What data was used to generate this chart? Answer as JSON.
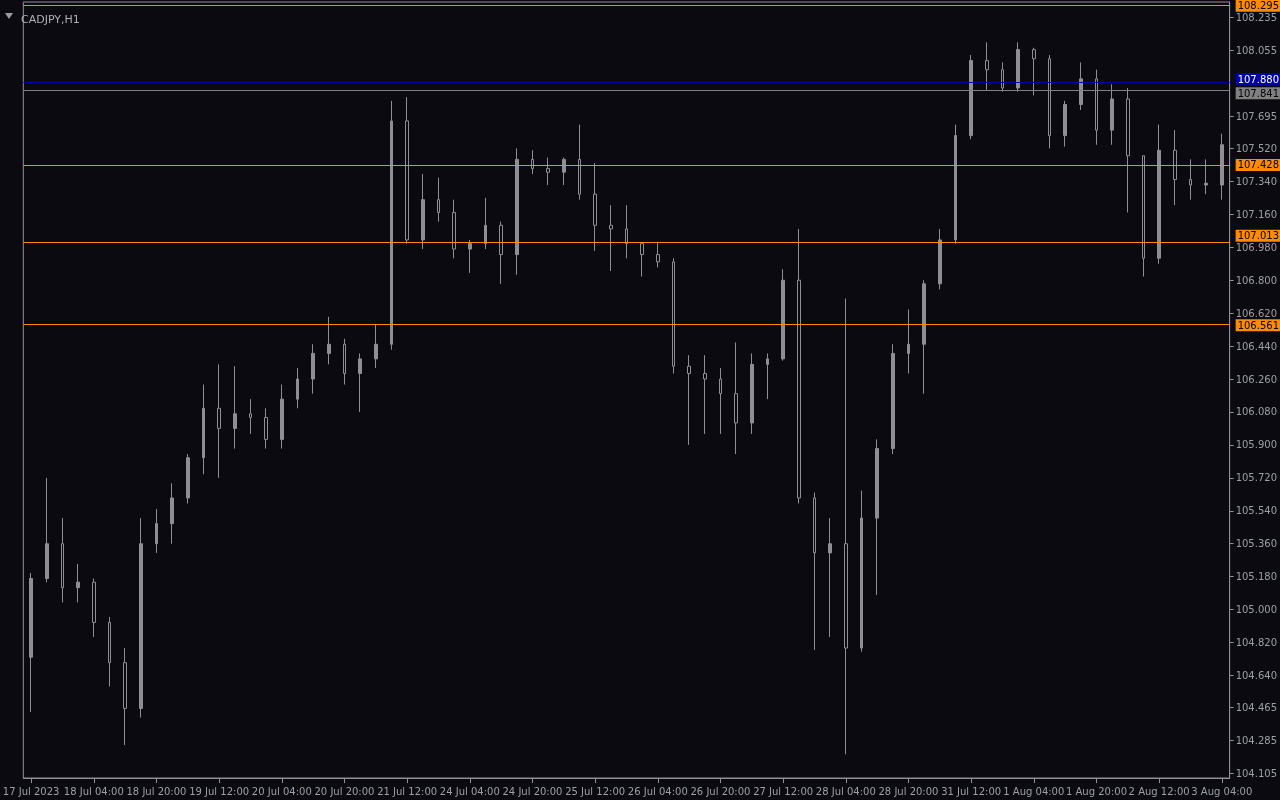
{
  "chart_data": {
    "type": "candlestick",
    "title": "CADJPY,H1",
    "categories": [
      "17 Jul 2023",
      null,
      null,
      null,
      "18 Jul 04:00",
      null,
      null,
      null,
      "18 Jul 20:00",
      null,
      null,
      null,
      "19 Jul 12:00",
      null,
      null,
      null,
      "20 Jul 04:00",
      null,
      null,
      null,
      "20 Jul 20:00",
      null,
      null,
      null,
      "21 Jul 12:00",
      null,
      null,
      null,
      "24 Jul 04:00",
      null,
      null,
      null,
      "24 Jul 20:00",
      null,
      null,
      null,
      "25 Jul 12:00",
      null,
      null,
      null,
      "26 Jul 04:00",
      null,
      null,
      null,
      "26 Jul 20:00",
      null,
      null,
      null,
      "27 Jul 12:00",
      null,
      null,
      null,
      "28 Jul 04:00",
      null,
      null,
      null,
      "28 Jul 20:00",
      null,
      null,
      null,
      "31 Jul 12:00",
      null,
      null,
      null,
      "1 Aug 04:00",
      null,
      null,
      null,
      "1 Aug 20:00",
      null,
      null,
      null,
      "2 Aug 12:00",
      null,
      null,
      null,
      "3 Aug 04:00"
    ],
    "series": [
      {
        "color": "#8e8e96",
        "ohlc": [
          [
            104.74,
            105.2,
            104.44,
            105.17
          ],
          [
            105.17,
            105.72,
            105.15,
            105.36
          ],
          [
            105.36,
            105.5,
            105.04,
            105.12
          ],
          [
            105.12,
            105.25,
            105.04,
            105.15
          ],
          [
            105.15,
            105.17,
            104.85,
            104.93
          ],
          [
            104.93,
            104.96,
            104.58,
            104.71
          ],
          [
            104.71,
            104.79,
            104.26,
            104.46
          ],
          [
            104.46,
            105.5,
            104.41,
            105.36
          ],
          [
            105.36,
            105.55,
            105.31,
            105.47
          ],
          [
            105.47,
            105.69,
            105.36,
            105.61
          ],
          [
            105.61,
            105.85,
            105.58,
            105.83
          ],
          [
            105.83,
            106.23,
            105.74,
            106.1
          ],
          [
            106.1,
            106.34,
            105.72,
            105.99
          ],
          [
            105.99,
            106.33,
            105.88,
            106.07
          ],
          [
            106.07,
            106.15,
            105.96,
            106.05
          ],
          [
            106.05,
            106.1,
            105.88,
            105.93
          ],
          [
            105.93,
            106.23,
            105.88,
            106.15
          ],
          [
            106.15,
            106.32,
            106.1,
            106.26
          ],
          [
            106.26,
            106.45,
            106.18,
            106.4
          ],
          [
            106.4,
            106.6,
            106.34,
            106.45
          ],
          [
            106.45,
            106.48,
            106.23,
            106.29
          ],
          [
            106.29,
            106.4,
            106.08,
            106.37
          ],
          [
            106.37,
            106.56,
            106.32,
            106.45
          ],
          [
            106.45,
            107.78,
            106.42,
            107.67
          ],
          [
            107.67,
            107.8,
            107.0,
            107.02
          ],
          [
            107.02,
            107.38,
            106.97,
            107.24
          ],
          [
            107.24,
            107.36,
            107.12,
            107.17
          ],
          [
            107.17,
            107.24,
            106.92,
            106.97
          ],
          [
            106.97,
            107.02,
            106.84,
            107.0
          ],
          [
            107.0,
            107.25,
            106.97,
            107.1
          ],
          [
            107.1,
            107.12,
            106.78,
            106.94
          ],
          [
            106.94,
            107.52,
            106.83,
            107.46
          ],
          [
            107.46,
            107.51,
            107.38,
            107.41
          ],
          [
            107.41,
            107.47,
            107.32,
            107.39
          ],
          [
            107.39,
            107.47,
            107.32,
            107.46
          ],
          [
            107.46,
            107.65,
            107.24,
            107.27
          ],
          [
            107.27,
            107.44,
            106.96,
            107.1
          ],
          [
            107.1,
            107.21,
            106.85,
            107.08
          ],
          [
            107.08,
            107.21,
            106.92,
            107.0
          ],
          [
            107.0,
            107.01,
            106.82,
            106.94
          ],
          [
            106.94,
            107.01,
            106.87,
            106.9
          ],
          [
            106.9,
            106.92,
            106.29,
            106.33
          ],
          [
            106.33,
            106.39,
            105.9,
            106.29
          ],
          [
            106.29,
            106.39,
            105.96,
            106.26
          ],
          [
            106.26,
            106.32,
            105.96,
            106.18
          ],
          [
            106.18,
            106.46,
            105.85,
            106.02
          ],
          [
            106.02,
            106.4,
            105.96,
            106.34
          ],
          [
            106.34,
            106.4,
            106.15,
            106.37
          ],
          [
            106.37,
            106.86,
            106.36,
            106.8
          ],
          [
            106.8,
            107.08,
            105.58,
            105.61
          ],
          [
            105.61,
            105.64,
            104.78,
            105.31
          ],
          [
            105.31,
            105.5,
            104.85,
            105.36
          ],
          [
            105.36,
            106.7,
            104.21,
            104.79
          ],
          [
            104.79,
            105.65,
            104.77,
            105.5
          ],
          [
            105.5,
            105.93,
            105.08,
            105.88
          ],
          [
            105.88,
            106.45,
            105.85,
            106.4
          ],
          [
            106.4,
            106.64,
            106.29,
            106.45
          ],
          [
            106.45,
            106.8,
            106.18,
            106.78
          ],
          [
            106.78,
            107.08,
            106.75,
            107.02
          ],
          [
            107.02,
            107.65,
            107.0,
            107.59
          ],
          [
            107.59,
            108.03,
            107.57,
            108.0
          ],
          [
            108.0,
            108.1,
            107.84,
            107.95
          ],
          [
            107.95,
            107.99,
            107.83,
            107.85
          ],
          [
            107.85,
            108.1,
            107.83,
            108.06
          ],
          [
            108.06,
            108.07,
            107.81,
            108.01
          ],
          [
            108.01,
            108.03,
            107.52,
            107.59
          ],
          [
            107.59,
            107.78,
            107.53,
            107.76
          ],
          [
            107.76,
            107.99,
            107.73,
            107.9
          ],
          [
            107.9,
            107.95,
            107.54,
            107.62
          ],
          [
            107.62,
            107.87,
            107.54,
            107.79
          ],
          [
            107.79,
            107.85,
            107.17,
            107.48
          ],
          [
            107.48,
            107.48,
            106.82,
            106.92
          ],
          [
            106.92,
            107.65,
            106.89,
            107.51
          ],
          [
            107.51,
            107.62,
            107.21,
            107.35
          ],
          [
            107.35,
            107.46,
            107.24,
            107.32
          ],
          [
            107.32,
            107.46,
            107.27,
            107.33
          ],
          [
            107.32,
            107.6,
            107.24,
            107.54
          ]
        ]
      }
    ],
    "ylim": [
      104.08,
      108.32
    ],
    "yticks": [
      {
        "value": 104.105,
        "label": "104.105"
      },
      {
        "value": 104.285,
        "label": "104.285"
      },
      {
        "value": 104.465,
        "label": "104.465"
      },
      {
        "value": 104.64,
        "label": "104.640"
      },
      {
        "value": 104.82,
        "label": "104.820"
      },
      {
        "value": 105,
        "label": "105.000"
      },
      {
        "value": 105.18,
        "label": "105.180"
      },
      {
        "value": 105.36,
        "label": "105.360"
      },
      {
        "value": 105.54,
        "label": "105.540"
      },
      {
        "value": 105.72,
        "label": "105.720"
      },
      {
        "value": 105.9,
        "label": "105.900"
      },
      {
        "value": 106.08,
        "label": "106.080"
      },
      {
        "value": 106.26,
        "label": "106.260"
      },
      {
        "value": 106.44,
        "label": "106.440"
      },
      {
        "value": 106.62,
        "label": "106.620"
      },
      {
        "value": 106.8,
        "label": "106.800"
      },
      {
        "value": 106.98,
        "label": "106.980"
      },
      {
        "value": 107.16,
        "label": "107.160"
      },
      {
        "value": 107.34,
        "label": "107.340"
      },
      {
        "value": 107.52,
        "label": "107.520"
      },
      {
        "value": 107.695,
        "label": "107.695"
      },
      {
        "value": 108.055,
        "label": "108.055"
      },
      {
        "value": 108.235,
        "label": "108.235"
      }
    ],
    "ref_lines": [
      {
        "axis": "y",
        "value": 108.295,
        "label": "108.295",
        "color": "#ff8c00"
      },
      {
        "axis": "y",
        "value": 107.88,
        "label": "107.880",
        "color": "#0000a8"
      },
      {
        "axis": "y",
        "value": 107.841,
        "label": "107.841",
        "color": "#808080"
      },
      {
        "axis": "y",
        "value": 107.428,
        "label": "107.428",
        "color": "#ff8c00"
      },
      {
        "axis": "y",
        "value": 107.013,
        "label": "107.013",
        "color": "#ff8c00"
      },
      {
        "axis": "y",
        "value": 106.561,
        "label": "106.561",
        "color": "#ff8c00"
      }
    ]
  }
}
